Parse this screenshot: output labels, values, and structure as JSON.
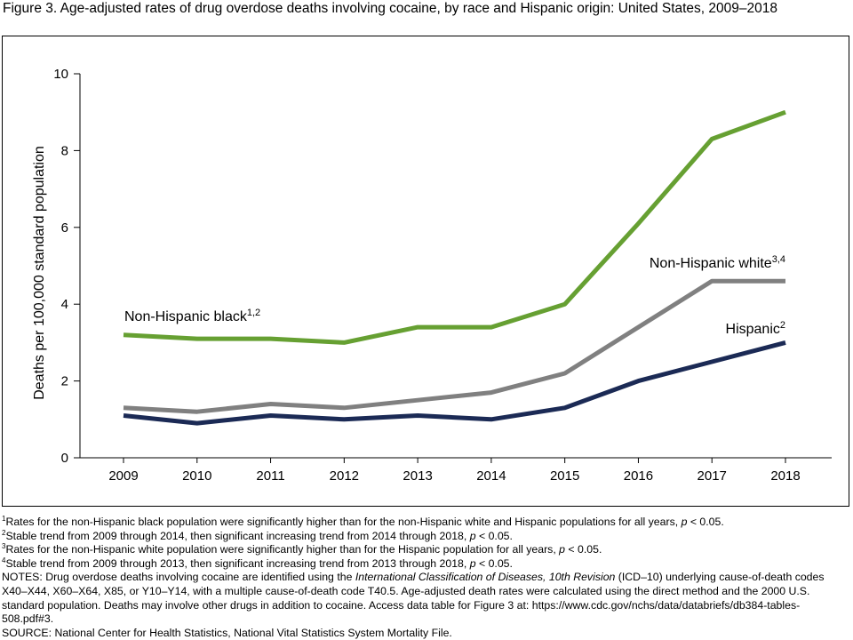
{
  "title": "Figure 3. Age-adjusted rates of drug overdose deaths involving cocaine, by race and Hispanic origin: United States, 2009–2018",
  "chart_data": {
    "type": "line",
    "x": [
      "2009",
      "2010",
      "2011",
      "2012",
      "2013",
      "2014",
      "2015",
      "2016",
      "2017",
      "2018"
    ],
    "ylabel": "Deaths per 100,000 standard population",
    "xlabel": "",
    "ylim": [
      0,
      10
    ],
    "yticks": [
      0,
      2,
      4,
      6,
      8,
      10
    ],
    "grid": false,
    "series": [
      {
        "name": "Non-Hispanic black",
        "sup": "1,2",
        "color": "#66a032",
        "values": [
          3.2,
          3.1,
          3.1,
          3.0,
          3.4,
          3.4,
          4.0,
          6.1,
          8.3,
          9.0
        ]
      },
      {
        "name": "Non-Hispanic white",
        "sup": "3,4",
        "color": "#808080",
        "values": [
          1.3,
          1.2,
          1.4,
          1.3,
          1.5,
          1.7,
          2.2,
          3.4,
          4.6,
          4.6
        ]
      },
      {
        "name": "Hispanic",
        "sup": "2",
        "color": "#1b2a55",
        "values": [
          1.1,
          0.9,
          1.1,
          1.0,
          1.1,
          1.0,
          1.3,
          2.0,
          2.5,
          3.0
        ]
      }
    ]
  },
  "footnotes": [
    {
      "sup": "1",
      "text": "Rates for the non-Hispanic black population were significantly higher than for the non-Hispanic white and Hispanic populations for all years, ",
      "p": "p",
      "tail": " < 0.05."
    },
    {
      "sup": "2",
      "text": "Stable trend from 2009 through 2014, then significant increasing trend from 2014 through 2018, ",
      "p": "p",
      "tail": " < 0.05."
    },
    {
      "sup": "3",
      "text": "Rates for the non-Hispanic white population were significantly higher than for the Hispanic population for all years, ",
      "p": "p",
      "tail": " < 0.05."
    },
    {
      "sup": "4",
      "text": "Stable trend from 2009 through 2013, then significant increasing trend from 2013 through 2018, ",
      "p": "p",
      "tail": " < 0.05."
    }
  ],
  "notes": {
    "prefix": "NOTES: Drug overdose deaths involving cocaine are identified using the ",
    "italic": "International Classification of Diseases, 10th Revision",
    "suffix": " (ICD–10) underlying cause-of-death codes X40–X44, X60–X64, X85, or Y10–Y14, with a multiple cause-of-death code T40.5. Age-adjusted death rates were calculated using the direct method and the 2000 U.S. standard population. Deaths may involve other drugs in addition to cocaine. Access data table for Figure 3 at: https://www.cdc.gov/nchs/data/databriefs/db384-tables-508.pdf#3."
  },
  "source": "SOURCE: National Center for Health Statistics, National Vital Statistics System Mortality File."
}
